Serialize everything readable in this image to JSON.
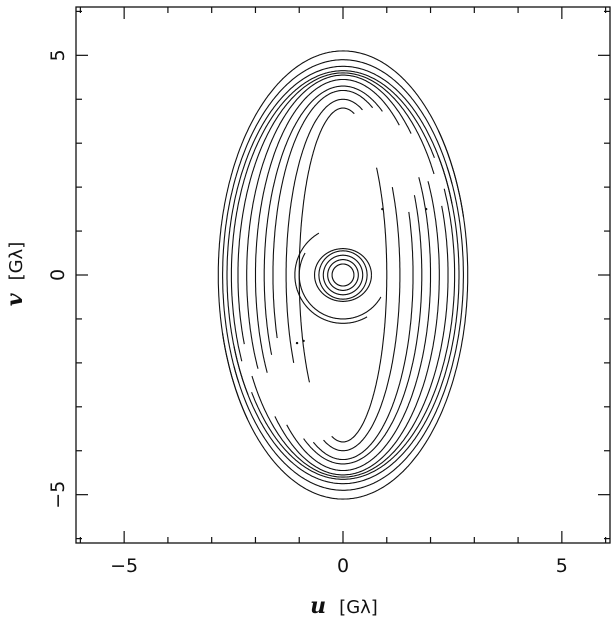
{
  "chart_data": {
    "type": "scatter",
    "xlabel": {
      "var": "u",
      "unit": "[Gλ]"
    },
    "ylabel": {
      "var": "v",
      "unit": "[Gλ]"
    },
    "xlim": [
      -6.1,
      6.1
    ],
    "ylim": [
      -6.1,
      6.1
    ],
    "x_ticks": [
      -5,
      0,
      5
    ],
    "y_ticks": [
      -5,
      0,
      5
    ],
    "x_tick_labels": [
      "−5",
      "0",
      "5"
    ],
    "y_tick_labels": [
      "−5",
      "0",
      "5"
    ],
    "grid": false,
    "series": [
      {
        "values_desc": "uv-coverage tracks",
        "color": "#111111"
      }
    ],
    "tracks": [
      {
        "cx": 0,
        "cy": 0,
        "a": 0.55,
        "b": 0.55,
        "t0": 0,
        "t1": 360
      },
      {
        "cx": 0,
        "cy": 0,
        "a": 0.45,
        "b": 0.45,
        "t0": 0,
        "t1": 360
      },
      {
        "cx": 0,
        "cy": 0,
        "a": 0.35,
        "b": 0.35,
        "t0": 0,
        "t1": 360
      },
      {
        "cx": 0,
        "cy": 0,
        "a": 0.25,
        "b": 0.25,
        "t0": 0,
        "t1": 360
      },
      {
        "cx": 0,
        "cy": 0,
        "a": 0.65,
        "b": 0.6,
        "t0": 0,
        "t1": 360
      },
      {
        "cx": 0,
        "cy": 0,
        "a": 1.0,
        "b": 1.0,
        "t0": 150,
        "t1": 330
      },
      {
        "cx": 0,
        "cy": 0,
        "a": 1.1,
        "b": 1.1,
        "t0": 120,
        "t1": 300
      },
      {
        "cx": 0,
        "cy": 0,
        "a": 2.85,
        "b": 5.1,
        "t0": 195,
        "t1": 40
      },
      {
        "cx": 0,
        "cy": 0,
        "a": 2.75,
        "b": 4.9,
        "t0": 205,
        "t1": 30
      },
      {
        "cx": 0,
        "cy": 0,
        "a": 2.65,
        "b": 4.75,
        "t0": 200,
        "t1": 35
      },
      {
        "cx": 0,
        "cy": 0,
        "a": 2.55,
        "b": 4.65,
        "t0": 215,
        "t1": 25
      },
      {
        "cx": 0,
        "cy": 0,
        "a": 2.4,
        "b": 4.6,
        "t0": 210,
        "t1": 20
      },
      {
        "cx": 0,
        "cy": 0,
        "a": 2.2,
        "b": 4.55,
        "t0": 225,
        "t1": 28
      },
      {
        "cx": 0,
        "cy": 0,
        "a": 2.0,
        "b": 4.45,
        "t0": 230,
        "t1": 30
      },
      {
        "cx": 0,
        "cy": 0,
        "a": 1.8,
        "b": 4.3,
        "t0": 240,
        "t1": 25
      },
      {
        "cx": 0,
        "cy": 0,
        "a": 1.6,
        "b": 4.2,
        "t0": 245,
        "t1": 20
      },
      {
        "cx": 0,
        "cy": 0,
        "a": 1.3,
        "b": 4.0,
        "t0": 250,
        "t1": 30
      },
      {
        "cx": 0,
        "cy": 0,
        "a": 1.0,
        "b": 3.8,
        "t0": 255,
        "t1": 40
      },
      {
        "cx": 0,
        "cy": 0,
        "a": 2.85,
        "b": 5.1,
        "t0": 15,
        "t1": 220
      },
      {
        "cx": 0,
        "cy": 0,
        "a": 2.75,
        "b": 4.9,
        "t0": 25,
        "t1": 210
      },
      {
        "cx": 0,
        "cy": 0,
        "a": 2.65,
        "b": 4.75,
        "t0": 20,
        "t1": 215
      },
      {
        "cx": 0,
        "cy": 0,
        "a": 2.55,
        "b": 4.65,
        "t0": 35,
        "t1": 205
      },
      {
        "cx": 0,
        "cy": 0,
        "a": 2.4,
        "b": 4.6,
        "t0": 30,
        "t1": 200
      },
      {
        "cx": 0,
        "cy": 0,
        "a": 2.2,
        "b": 4.55,
        "t0": 45,
        "t1": 208
      },
      {
        "cx": 0,
        "cy": 0,
        "a": 2.0,
        "b": 4.45,
        "t0": 50,
        "t1": 210
      },
      {
        "cx": 0,
        "cy": 0,
        "a": 1.8,
        "b": 4.3,
        "t0": 60,
        "t1": 205
      },
      {
        "cx": 0,
        "cy": 0,
        "a": 1.6,
        "b": 4.2,
        "t0": 65,
        "t1": 200
      },
      {
        "cx": 0,
        "cy": 0,
        "a": 1.3,
        "b": 4.0,
        "t0": 70,
        "t1": 210
      },
      {
        "cx": 0,
        "cy": 0,
        "a": 1.0,
        "b": 3.8,
        "t0": 75,
        "t1": 220
      }
    ],
    "points": [
      {
        "x": 0.9,
        "y": 1.5
      },
      {
        "x": 1.9,
        "y": 1.5
      },
      {
        "x": -0.9,
        "y": -1.5
      },
      {
        "x": -1.05,
        "y": -1.55
      }
    ]
  }
}
